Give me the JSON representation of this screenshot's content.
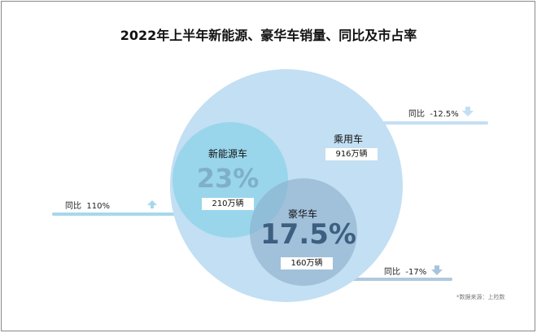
{
  "title": "2022年上半年新能源、豪华车销量、同比及市占率",
  "passenger": {
    "label": "乘用车",
    "volume": "916万辆",
    "yoy_label": "同比",
    "yoy": "-12.5%",
    "trend": "down"
  },
  "nev": {
    "label": "新能源车",
    "share": "23%",
    "volume": "210万辆",
    "yoy_label": "同比",
    "yoy": "110%",
    "trend": "up"
  },
  "luxury": {
    "label": "豪华车",
    "share": "17.5%",
    "volume": "160万辆",
    "yoy_label": "同比",
    "yoy": "-17%",
    "trend": "down"
  },
  "source": "*数据来源：上险数",
  "colors": {
    "passenger": "#c3dff3",
    "nev": "#8fd3e8",
    "luxury": "#9bb9d4",
    "nev_pct": "#7fb0c8",
    "luxury_pct": "#3d5f80"
  }
}
